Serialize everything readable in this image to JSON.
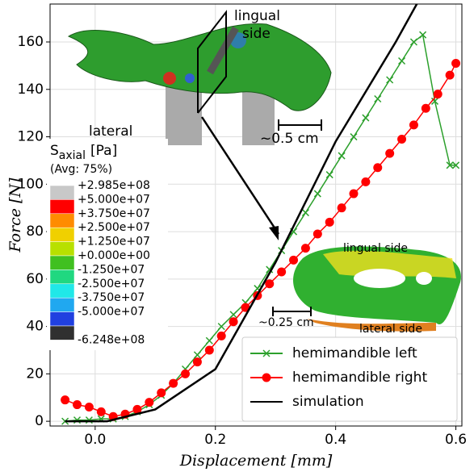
{
  "chart_data": {
    "type": "line",
    "xlabel": "Displacement [mm]",
    "ylabel": "Force [N]",
    "xlim": [
      -0.075,
      0.61
    ],
    "ylim": [
      -2,
      176
    ],
    "xticks": [
      {
        "value": 0,
        "label": "0.0"
      },
      {
        "value": 0.2,
        "label": "0.2"
      },
      {
        "value": 0.4,
        "label": "0.4"
      },
      {
        "value": 0.6,
        "label": "0.6"
      }
    ],
    "yticks": [
      0,
      20,
      40,
      60,
      80,
      100,
      120,
      140,
      160
    ],
    "grid": true,
    "legend": "lower right",
    "series": [
      {
        "name": "hemimandible left",
        "color": "#2ca02c",
        "marker": "x",
        "x": [
          -0.05,
          -0.03,
          -0.01,
          0.01,
          0.03,
          0.05,
          0.07,
          0.09,
          0.11,
          0.13,
          0.15,
          0.17,
          0.19,
          0.21,
          0.23,
          0.25,
          0.27,
          0.29,
          0.31,
          0.33,
          0.35,
          0.37,
          0.39,
          0.41,
          0.43,
          0.45,
          0.47,
          0.49,
          0.51,
          0.53,
          0.545,
          0.565,
          0.59,
          0.6
        ],
        "values": [
          0,
          0.5,
          0.5,
          1,
          1,
          2,
          4,
          7,
          11,
          16,
          22,
          28,
          34,
          40,
          45,
          50,
          56,
          64,
          72,
          80,
          88,
          96,
          104,
          112,
          120,
          128,
          136,
          144,
          152,
          160,
          163,
          135,
          108,
          108
        ]
      },
      {
        "name": "hemimandible right",
        "color": "#ff0000",
        "marker": "o",
        "x": [
          -0.05,
          -0.03,
          -0.01,
          0.01,
          0.03,
          0.05,
          0.07,
          0.09,
          0.11,
          0.13,
          0.15,
          0.17,
          0.19,
          0.21,
          0.23,
          0.25,
          0.27,
          0.29,
          0.31,
          0.33,
          0.35,
          0.37,
          0.39,
          0.41,
          0.43,
          0.45,
          0.47,
          0.49,
          0.51,
          0.53,
          0.55,
          0.57,
          0.59,
          0.6
        ],
        "values": [
          9,
          7,
          6,
          4,
          2,
          3,
          5,
          8,
          12,
          16,
          20,
          25,
          30,
          36,
          42,
          48,
          53,
          58,
          63,
          68,
          73,
          79,
          84,
          90,
          96,
          101,
          107,
          113,
          119,
          125,
          132,
          138,
          146,
          151
        ]
      },
      {
        "name": "simulation",
        "color": "#000000",
        "marker": "none",
        "x": [
          -0.05,
          0.02,
          0.1,
          0.2,
          0.3,
          0.4,
          0.5,
          0.535
        ],
        "values": [
          0,
          0,
          5,
          22,
          67,
          118,
          160,
          176
        ]
      }
    ],
    "annotations": [
      "lingual",
      "side",
      "lateral",
      "side",
      "~0.5 cm",
      "lingual side",
      "lateral side",
      "~0.25 cm"
    ],
    "colorbar": {
      "title": "S",
      "subscript": "axial",
      "unit": "[Pa]",
      "note": "(Avg: 75%)",
      "labels": [
        "+2.985e+08",
        "+5.000e+07",
        "+3.750e+07",
        "+2.500e+07",
        "+1.250e+07",
        "+0.000e+00",
        "-1.250e+07",
        "-2.500e+07",
        "-3.750e+07",
        "-5.000e+07",
        "-6.248e+08"
      ],
      "colors": [
        "#c8c8c8",
        "#ff0000",
        "#ff8c00",
        "#f0d000",
        "#b8e000",
        "#40c020",
        "#20d880",
        "#20e8e8",
        "#20a8f0",
        "#2040e0",
        "#303030"
      ]
    }
  }
}
